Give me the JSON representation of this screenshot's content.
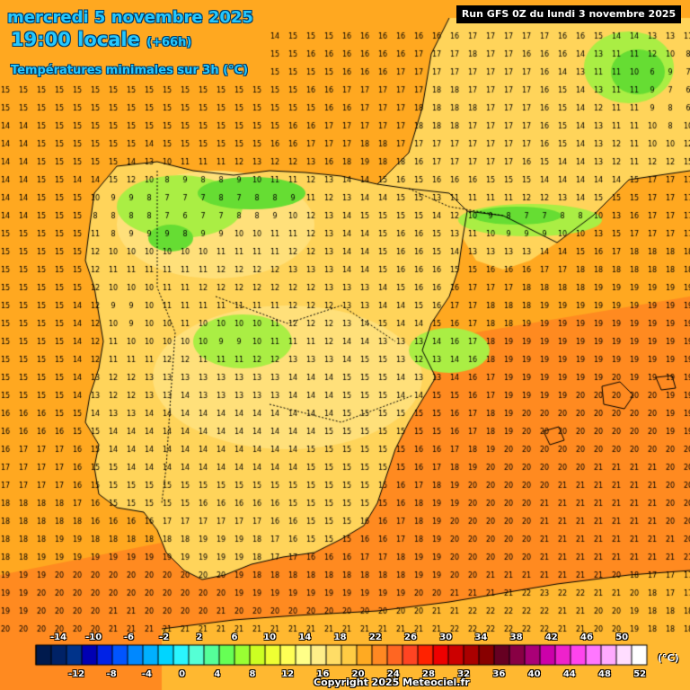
{
  "header": {
    "date": "mercredi 5 novembre 2025",
    "time": "19:00 locale",
    "offset": "(+66h)",
    "subtitle": "Températures minimales sur 3h (°C)",
    "run": "Run GFS 0Z du lundi 3 novembre 2025"
  },
  "credit": "Copyright 2025 Meteociel.fr",
  "legend": {
    "unit": "(°C)",
    "colors": [
      "#001a4d",
      "#002266",
      "#00338a",
      "#0000b3",
      "#0022e6",
      "#0055ff",
      "#0088ff",
      "#00b0ff",
      "#00d5ff",
      "#2af5ff",
      "#55ffd5",
      "#55ff99",
      "#66ff55",
      "#99ff33",
      "#ccff22",
      "#eeff33",
      "#ffff55",
      "#ffff88",
      "#ffee88",
      "#ffdd66",
      "#ffcc44",
      "#ffaa22",
      "#ff8822",
      "#ff6622",
      "#ff4422",
      "#ff2200",
      "#ee0000",
      "#cc0000",
      "#aa0000",
      "#880000",
      "#660022",
      "#880044",
      "#aa0077",
      "#cc00aa",
      "#ee22cc",
      "#ff44ee",
      "#ff77ff",
      "#ffaaff",
      "#ffddff",
      "#ffffff"
    ],
    "top_labels": [
      "-14",
      "-10",
      "-6",
      "-2",
      "2",
      "6",
      "10",
      "14",
      "18",
      "22",
      "26",
      "30",
      "34",
      "38",
      "42",
      "46",
      "50"
    ],
    "bottom_labels": [
      "-12",
      "-8",
      "-4",
      "0",
      "4",
      "8",
      "12",
      "16",
      "20",
      "24",
      "28",
      "32",
      "36",
      "40",
      "44",
      "48",
      "52"
    ]
  },
  "map_colors": {
    "sea": "#ffa820",
    "sea_warm": "#ff8a20",
    "land": "#ffd45a",
    "land_cool": "#ffe07a",
    "cold_zone": "#aaee44",
    "very_cold": "#66dd33",
    "coast": "#000000"
  },
  "number_rows": [
    "14 14 15 15 15 15 15 14 14 14 14 15 15 15 14 14 15 15 15 16 16 16 16 16 16 16 17 17 17 17 17 16 16 15 14 14 13 13 11 11",
    "15 15 15 15 15 15 15 14 14 14 14 14 15 15 15 15 15 16 16 16 16 16 16 17 17 17 18 17 17 16 16 16 14 13 11 11 12 10 8 8",
    "15 15 15 15 15 15 15 15 15 15 15 15 15 15 15 15 15 15 15 16 16 16 17 17 17 17 17 17 17 17 16 14 13 11 11 10 6 9 7 6",
    "15 15 15 15 15 15 15 15 15 15 15 15 15 15 15 15 15 16 16 17 17 17 17 17 18 18 17 17 17 17 16 15 14 13 11 11 9 7 6 8",
    "15 15 15 15 15 15 15 15 15 15 15 15 15 15 15 15 15 15 16 16 17 17 17 18 18 18 18 17 17 17 16 15 14 12 11 11 9 8 6 8",
    "14 14 15 15 15 15 15 15 15 15 15 15 15 15 15 15 16 16 17 17 17 17 17 18 18 18 17 17 17 17 16 15 14 13 11 11 10 8 10 12",
    "14 14 15 15 15 15 15 15 14 15 15 15 15 15 15 16 16 17 17 17 18 18 17 17 17 17 17 17 17 17 16 15 14 13 12 11 10 10 12 12",
    "14 14 15 15 15 15 15 14 13 10 11 11 11 12 13 12 12 13 16 18 19 18 18 16 17 17 17 17 17 16 15 14 14 13 12 11 12 12 15 15",
    "14 14 15 15 14 14 15 12 10 8 9 8 8 9 10 11 11 12 13 14 14 15 16 15 16 16 16 15 15 15 14 14 14 14 14 15 17 17 17 17",
    "14 14 15 15 15 10 9 9 8 7 7 7 8 7 8 8 9 11 12 13 14 14 15 15 13 11 11 11 11 12 12 13 14 15 15 15 17 17 17 17",
    "14 14 15 15 15 8 8 8 8 7 6 7 7 8 8 9 10 12 13 14 15 15 15 15 14 12 10 9 8 7 7 8 8 10 13 16 17 17 17 17",
    "15 15 15 15 15 11 8 9 9 9 8 9 9 10 10 11 11 12 13 14 14 15 16 16 15 13 11 10 9 9 9 10 10 13 15 17 17 17 17 17",
    "15 15 15 15 15 12 10 10 10 10 10 10 11 11 11 11 12 12 13 14 14 15 16 16 15 14 13 13 13 13 14 14 15 16 17 18 18 18 18 18",
    "15 15 15 15 15 12 11 11 11 11 11 11 12 12 12 12 13 13 13 14 14 15 16 16 16 15 15 16 16 16 17 17 18 18 18 18 18 18 18 18",
    "15 15 15 15 15 12 10 10 10 11 11 12 12 12 12 12 12 12 13 13 13 14 15 16 16 16 17 17 17 18 18 18 18 19 19 19 19 19 19 19",
    "15 15 15 15 14 12 9 9 10 11 11 11 11 11 11 11 12 12 12 13 13 14 14 15 16 17 17 18 18 18 19 19 19 19 19 19 19 19 19 19",
    "15 15 15 15 14 12 10 9 10 10 11 10 10 10 10 11 12 12 12 13 14 15 14 14 15 16 17 18 18 19 19 19 19 19 19 19 19 19 19 19",
    "15 15 15 15 14 12 11 10 10 10 10 10 9 9 10 11 11 11 12 14 14 13 13 13 14 16 17 18 19 19 19 19 19 19 19 19 19 19 19 19",
    "15 15 15 15 14 12 11 11 11 12 12 11 11 11 12 12 13 13 13 14 15 15 13 12 13 14 16 18 19 19 19 19 19 19 19 19 19 19 19 19",
    "15 15 15 15 14 13 12 12 13 13 13 13 13 13 13 13 14 14 14 15 15 15 14 13 13 14 16 17 19 19 19 19 19 19 20 19 19 19 19 19",
    "15 15 15 15 14 13 12 12 13 13 14 13 13 13 13 13 14 14 14 15 15 15 14 14 15 15 16 17 19 19 19 19 20 20 20 20 20 19 19 19",
    "16 16 16 15 15 14 13 13 14 14 14 14 14 14 14 14 14 14 14 15 15 15 15 15 15 16 17 18 19 20 20 20 20 20 20 20 20 19 19 19",
    "16 16 16 16 15 15 14 14 14 14 14 14 14 14 14 14 14 14 15 15 15 15 15 15 15 16 17 18 19 20 20 20 20 20 20 20 20 19 19 19",
    "16 17 17 17 16 15 14 14 14 14 14 14 14 14 14 14 14 15 15 15 15 15 15 16 16 17 18 19 20 20 20 20 20 20 20 20 20 20 20 19",
    "17 17 17 17 16 15 15 14 14 14 14 14 14 14 14 14 14 15 15 15 15 15 15 16 17 18 19 20 20 20 20 20 20 21 21 21 21 20 20 19",
    "17 17 17 17 16 15 15 15 15 15 15 15 15 15 15 15 15 15 15 15 15 15 16 17 18 19 20 20 20 20 20 21 21 21 21 21 21 20 20 20",
    "18 18 18 18 17 16 15 15 15 15 15 16 16 16 16 16 15 15 15 15 15 15 16 18 19 19 20 20 20 20 21 21 21 21 21 21 21 20 20 20",
    "18 18 18 18 18 16 16 16 16 17 17 17 17 17 17 16 16 15 15 15 16 16 17 18 19 20 20 20 20 20 21 21 21 21 21 21 21 20 20 20",
    "18 18 18 19 19 18 18 18 18 18 18 19 19 19 18 17 16 15 15 15 16 16 17 18 19 20 20 20 20 20 21 21 21 21 21 21 21 21 20 20",
    "18 18 19 19 19 19 19 19 19 19 19 19 19 19 18 17 17 16 16 16 17 17 18 19 19 20 20 20 20 20 21 21 21 21 21 21 21 21 21 20",
    "19 19 19 20 20 20 20 20 20 20 20 20 20 19 18 18 18 18 18 18 18 18 18 19 19 20 20 21 21 21 21 21 21 21 20 18 17 17 17 17",
    "19 19 20 20 20 20 20 20 20 20 20 20 20 19 19 19 19 19 19 19 19 19 19 20 20 21 21 21 21 22 23 22 22 21 21 20 18 17 17 17",
    "19 19 20 20 20 20 21 21 20 20 20 20 21 20 20 20 20 20 20 20 20 20 20 20 21 21 22 22 22 22 22 21 21 20 20 19 18 18 18 17",
    "20 20 20 20 20 20 21 21 21 21 21 21 21 21 21 21 21 21 21 21 21 21 21 21 21 22 22 22 22 22 22 21 21 20 20 19 18 18 18 18",
    "20 20 20 20 21 21 21 21 21 21 21 21 21 21 21 21 21 21 21 21 21 21 21 21 21 21 22 22 22 22 21 21 20 20 20 20 20 19 19 19",
    "20 20 20 20 21 21 21 21 21 21 21 21 21 21 21 21 21 21 21 21 21 21 21 21 21 21 21 22 22 22 21 21 21 21 21 20 20 20 20 20",
    "20 20 20 20 21 21 21 21 21 21 21 21 21 21 21 21 21 21 21 21 21 21 21 21 21 21 21 21 21 21 21 21 21 21 21 20 20 20 20 20",
    "20 20 20 21 21 21 21 21 21 21 21 21 21 21 21 21 21 22 22 22 22 21 21 21 21 21 21 21 21 21 21 21 21 21 21 21 21 21 20 20"
  ]
}
